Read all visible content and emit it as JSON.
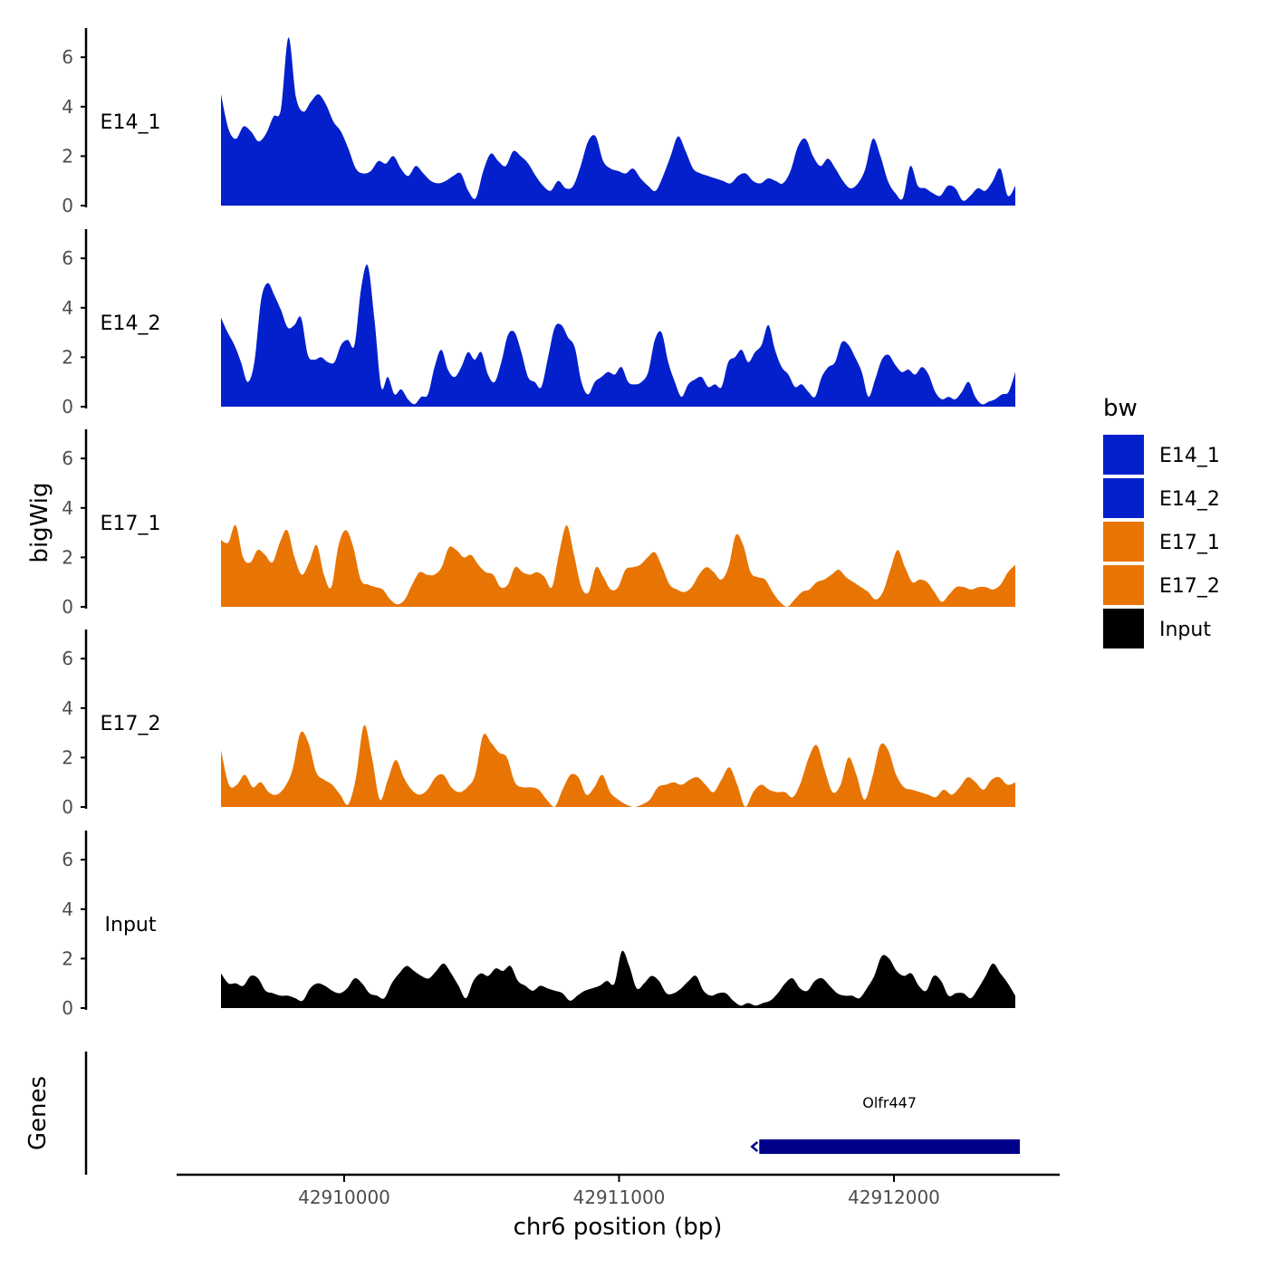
{
  "chart_data": {
    "type": "area",
    "chromosome": "chr6",
    "y_axis_label": "bigWig",
    "genes_label": "Genes",
    "x_axis_label": "chr6 position (bp)",
    "x_ticks": [
      42910000,
      42911000,
      42912000
    ],
    "x_tick_labels": [
      "42910000",
      "42911000",
      "42912000"
    ],
    "x_range": [
      42909550,
      42912450
    ],
    "y_range": [
      0,
      7
    ],
    "y_ticks": [
      0,
      2,
      4,
      6
    ],
    "y_tick_labels": [
      "0",
      "2",
      "4",
      "6"
    ],
    "legend": {
      "title": "bw",
      "entries": [
        {
          "label": "E14_1",
          "color": "#0320cc"
        },
        {
          "label": "E14_2",
          "color": "#0320cc"
        },
        {
          "label": "E17_1",
          "color": "#e87503"
        },
        {
          "label": "E17_2",
          "color": "#e87503"
        },
        {
          "label": "Input",
          "color": "#000000"
        }
      ]
    },
    "series": [
      {
        "name": "E14_1",
        "label": "E14_1",
        "color": "#0320cc",
        "values": [
          4.5,
          3.1,
          2.7,
          3.2,
          3.0,
          2.6,
          2.9,
          3.6,
          3.9,
          6.8,
          4.4,
          3.8,
          4.2,
          4.5,
          4.1,
          3.4,
          3.0,
          2.3,
          1.5,
          1.3,
          1.4,
          1.8,
          1.7,
          2.0,
          1.5,
          1.2,
          1.6,
          1.3,
          1.0,
          0.9,
          1.0,
          1.2,
          1.3,
          0.6,
          0.3,
          1.4,
          2.1,
          1.8,
          1.6,
          2.2,
          2.0,
          1.7,
          1.2,
          0.8,
          0.6,
          1.0,
          0.7,
          0.8,
          1.6,
          2.6,
          2.8,
          1.8,
          1.5,
          1.4,
          1.3,
          1.5,
          1.1,
          0.8,
          0.6,
          1.2,
          2.0,
          2.8,
          2.2,
          1.5,
          1.3,
          1.2,
          1.1,
          1.0,
          0.9,
          1.2,
          1.3,
          1.0,
          0.9,
          1.1,
          1.0,
          0.9,
          1.4,
          2.4,
          2.7,
          2.0,
          1.6,
          1.9,
          1.5,
          1.0,
          0.7,
          0.9,
          1.5,
          2.7,
          2.0,
          1.0,
          0.5,
          0.3,
          1.6,
          0.8,
          0.7,
          0.5,
          0.4,
          0.8,
          0.7,
          0.2,
          0.4,
          0.7,
          0.6,
          1.0,
          1.5,
          0.4,
          0.8
        ],
        "series_a": [
          4.5,
          3.1,
          2.7,
          3.2,
          3.0,
          2.6,
          2.9,
          3.6,
          3.9,
          6.8,
          4.4,
          3.8,
          4.2,
          4.5,
          4.1,
          3.4,
          3.0,
          2.3,
          1.5,
          1.3
        ]
      },
      {
        "name": "E14_2",
        "label": "E14_2",
        "color": "#0320cc",
        "values": [
          3.6,
          3.0,
          2.5,
          1.8,
          1.0,
          1.8,
          4.3,
          5.0,
          4.5,
          3.9,
          3.2,
          3.3,
          3.6,
          2.1,
          1.9,
          2.0,
          1.8,
          1.8,
          2.5,
          2.7,
          2.5,
          4.8,
          5.7,
          3.5,
          0.8,
          1.2,
          0.5,
          0.7,
          0.3,
          0.1,
          0.4,
          0.5,
          1.6,
          2.3,
          1.5,
          1.2,
          1.6,
          2.2,
          1.9,
          2.2,
          1.3,
          1.0,
          1.8,
          2.9,
          3.0,
          2.2,
          1.2,
          1.0,
          0.8,
          2.0,
          3.2,
          3.3,
          2.8,
          2.4,
          1.0,
          0.5,
          1.0,
          1.2,
          1.4,
          1.3,
          1.6,
          1.0,
          0.9,
          1.0,
          1.4,
          2.7,
          3.0,
          1.8,
          1.0,
          0.4,
          0.9,
          1.1,
          1.2,
          0.8,
          0.9,
          0.8,
          1.8,
          2.0,
          2.3,
          1.8,
          2.2,
          2.5,
          3.3,
          2.3,
          1.6,
          1.3,
          0.8,
          0.9,
          0.6,
          0.4,
          1.2,
          1.6,
          1.8,
          2.6,
          2.5,
          2.0,
          1.4,
          0.4,
          1.1,
          1.9,
          2.1,
          1.7,
          1.4,
          1.5,
          1.3,
          1.6,
          1.3,
          0.6,
          0.3,
          0.4,
          0.3,
          0.6,
          1.0,
          0.4,
          0.1,
          0.2,
          0.3,
          0.5,
          0.6,
          1.4
        ]
      },
      {
        "name": "E17_1",
        "label": "E17_1",
        "color": "#e87503",
        "values": [
          2.7,
          2.6,
          3.3,
          2.0,
          1.8,
          2.3,
          2.1,
          1.8,
          2.6,
          3.1,
          2.0,
          1.3,
          1.8,
          2.5,
          1.3,
          0.8,
          2.5,
          3.1,
          2.4,
          1.1,
          0.9,
          0.8,
          0.7,
          0.3,
          0.1,
          0.3,
          0.9,
          1.4,
          1.3,
          1.3,
          1.6,
          2.4,
          2.3,
          2.0,
          2.1,
          1.7,
          1.4,
          1.3,
          0.8,
          0.9,
          1.6,
          1.4,
          1.3,
          1.4,
          1.2,
          0.8,
          2.2,
          3.3,
          2.1,
          0.8,
          0.6,
          1.6,
          1.2,
          0.7,
          0.8,
          1.5,
          1.6,
          1.7,
          2.0,
          2.2,
          1.6,
          0.9,
          0.7,
          0.6,
          0.8,
          1.3,
          1.6,
          1.4,
          1.1,
          1.6,
          2.9,
          2.5,
          1.4,
          1.2,
          1.1,
          0.6,
          0.2,
          0.0,
          0.3,
          0.6,
          0.7,
          1.0,
          1.1,
          1.3,
          1.5,
          1.2,
          1.0,
          0.8,
          0.6,
          0.3,
          0.6,
          1.5,
          2.3,
          1.6,
          1.0,
          1.1,
          1.0,
          0.6,
          0.2,
          0.5,
          0.8,
          0.8,
          0.7,
          0.8,
          0.8,
          0.7,
          0.9,
          1.4,
          1.7
        ]
      },
      {
        "name": "E17_2",
        "label": "E17_2",
        "color": "#e87503",
        "values": [
          2.3,
          0.9,
          0.9,
          1.3,
          0.8,
          1.0,
          0.6,
          0.5,
          0.8,
          1.5,
          3.0,
          2.6,
          1.4,
          1.1,
          0.9,
          0.5,
          0.1,
          1.2,
          3.3,
          2.0,
          0.3,
          1.1,
          1.9,
          1.2,
          0.7,
          0.5,
          0.7,
          1.2,
          1.3,
          0.8,
          0.6,
          0.8,
          1.3,
          2.9,
          2.6,
          2.2,
          2.0,
          1.0,
          0.8,
          0.8,
          0.7,
          0.3,
          0.0,
          0.7,
          1.3,
          1.2,
          0.5,
          0.8,
          1.3,
          0.6,
          0.3,
          0.1,
          0.0,
          0.1,
          0.3,
          0.8,
          0.9,
          1.0,
          0.9,
          1.1,
          1.2,
          0.9,
          0.6,
          1.1,
          1.6,
          0.9,
          0.0,
          0.6,
          0.9,
          0.7,
          0.6,
          0.6,
          0.4,
          1.0,
          2.0,
          2.5,
          1.5,
          0.6,
          0.9,
          2.0,
          1.3,
          0.3,
          1.2,
          2.5,
          2.3,
          1.3,
          0.8,
          0.7,
          0.6,
          0.5,
          0.4,
          0.7,
          0.5,
          0.8,
          1.2,
          1.0,
          0.7,
          1.1,
          1.2,
          0.9,
          1.0
        ]
      },
      {
        "name": "Input",
        "label": "Input",
        "color": "#000000",
        "values": [
          1.4,
          1.0,
          1.0,
          0.9,
          1.3,
          1.2,
          0.7,
          0.6,
          0.5,
          0.5,
          0.4,
          0.3,
          0.8,
          1.0,
          0.9,
          0.7,
          0.6,
          0.8,
          1.2,
          1.0,
          0.6,
          0.5,
          0.4,
          1.0,
          1.4,
          1.7,
          1.5,
          1.3,
          1.2,
          1.5,
          1.8,
          1.4,
          0.9,
          0.4,
          1.1,
          1.4,
          1.3,
          1.6,
          1.5,
          1.7,
          1.1,
          0.9,
          0.7,
          0.9,
          0.8,
          0.7,
          0.6,
          0.3,
          0.5,
          0.7,
          0.8,
          0.9,
          1.1,
          1.0,
          2.3,
          1.7,
          0.8,
          1.0,
          1.3,
          1.1,
          0.6,
          0.6,
          0.8,
          1.1,
          1.3,
          0.7,
          0.5,
          0.6,
          0.6,
          0.3,
          0.1,
          0.2,
          0.1,
          0.2,
          0.3,
          0.6,
          1.0,
          1.2,
          0.8,
          0.7,
          1.1,
          1.2,
          0.9,
          0.6,
          0.5,
          0.5,
          0.4,
          0.8,
          1.3,
          2.1,
          2.0,
          1.5,
          1.3,
          1.4,
          0.9,
          0.7,
          1.3,
          1.1,
          0.5,
          0.6,
          0.6,
          0.4,
          0.8,
          1.3,
          1.8,
          1.4,
          1.0,
          0.5
        ]
      }
    ],
    "genes": [
      {
        "name": "Olfr447",
        "start": 42911510,
        "end": 42912460,
        "strand": "-",
        "color": "#00008b"
      }
    ]
  }
}
